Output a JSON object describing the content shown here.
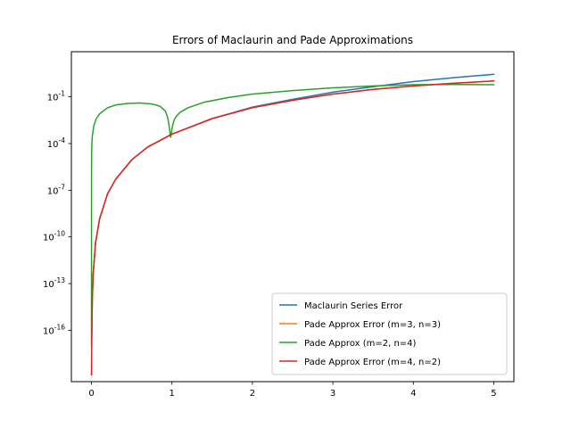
{
  "chart_data": {
    "type": "line",
    "title": "Errors of Maclaurin and Pade Approximations",
    "xlabel": "",
    "ylabel": "",
    "xlim": [
      -0.25,
      5.25
    ],
    "ylim_log10": [
      -19.3,
      1.9
    ],
    "yscale": "log",
    "x_ticks": [
      0,
      1,
      2,
      3,
      4,
      5
    ],
    "x_tick_labels": [
      "0",
      "1",
      "2",
      "3",
      "4",
      "5"
    ],
    "y_ticks_log10": [
      -16,
      -13,
      -10,
      -7,
      -4,
      -1
    ],
    "y_tick_labels": [
      "10^-16",
      "10^-13",
      "10^-10",
      "10^-7",
      "10^-4",
      "10^-1"
    ],
    "grid": false,
    "legend_position": "lower right",
    "series": [
      {
        "name": "Maclaurin Series Error",
        "color": "#1f77b4",
        "x": [
          0.001,
          0.003,
          0.01,
          0.02,
          0.05,
          0.1,
          0.2,
          0.3,
          0.5,
          0.7,
          1.0,
          1.5,
          2.0,
          2.5,
          3.0,
          3.5,
          4.0,
          4.5,
          5.0
        ],
        "y": [
          1.4e-19,
          3e-17,
          1e-14,
          3.5e-13,
          4e-11,
          1.4e-09,
          6e-08,
          5e-07,
          9e-06,
          6e-05,
          0.0004,
          0.004,
          0.022,
          0.07,
          0.2,
          0.45,
          0.95,
          1.7,
          2.8
        ]
      },
      {
        "name": "Pade Approx Error (m=3, n=3)",
        "color": "#ff7f0e",
        "x": [
          0.001,
          0.003,
          0.01,
          0.02,
          0.05,
          0.1,
          0.2,
          0.3,
          0.5,
          0.7,
          1.0,
          1.5,
          2.0,
          2.5,
          3.0,
          3.5,
          4.0,
          4.5,
          5.0
        ],
        "y": [
          1.4e-19,
          3e-17,
          1e-14,
          3.5e-13,
          4e-11,
          1.4e-09,
          6e-08,
          5e-07,
          9e-06,
          6e-05,
          0.0004,
          0.004,
          0.02,
          0.06,
          0.15,
          0.3,
          0.5,
          0.75,
          1.05
        ]
      },
      {
        "name": "Pade Approx (m=2, n=4)",
        "color": "#2ca02c",
        "x": [
          0.0,
          0.0005,
          0.002,
          0.005,
          0.01,
          0.03,
          0.06,
          0.1,
          0.2,
          0.3,
          0.45,
          0.6,
          0.75,
          0.85,
          0.92,
          0.95,
          0.97,
          0.98,
          0.985,
          1.0,
          1.01,
          1.03,
          1.06,
          1.1,
          1.2,
          1.4,
          1.7,
          2.0,
          2.5,
          3.0,
          3.5,
          4.0,
          4.5,
          5.0
        ],
        "y": [
          1e-17,
          1e-06,
          3e-05,
          0.0001,
          0.0003,
          0.0015,
          0.004,
          0.008,
          0.02,
          0.03,
          0.038,
          0.04,
          0.035,
          0.025,
          0.012,
          0.004,
          0.0009,
          0.0003,
          0.00025,
          0.0008,
          0.0016,
          0.0035,
          0.006,
          0.01,
          0.02,
          0.045,
          0.09,
          0.15,
          0.25,
          0.38,
          0.5,
          0.6,
          0.62,
          0.6
        ]
      },
      {
        "name": "Pade Approx Error (m=4, n=2)",
        "color": "#d62728",
        "x": [
          0.001,
          0.003,
          0.01,
          0.02,
          0.05,
          0.1,
          0.2,
          0.3,
          0.5,
          0.7,
          1.0,
          1.5,
          2.0,
          2.5,
          3.0,
          3.5,
          4.0,
          4.5,
          5.0
        ],
        "y": [
          1.4e-19,
          3e-17,
          1e-14,
          3.5e-13,
          4e-11,
          1.4e-09,
          6e-08,
          5e-07,
          9e-06,
          6e-05,
          0.0004,
          0.004,
          0.02,
          0.06,
          0.15,
          0.3,
          0.5,
          0.75,
          1.05
        ]
      }
    ]
  }
}
